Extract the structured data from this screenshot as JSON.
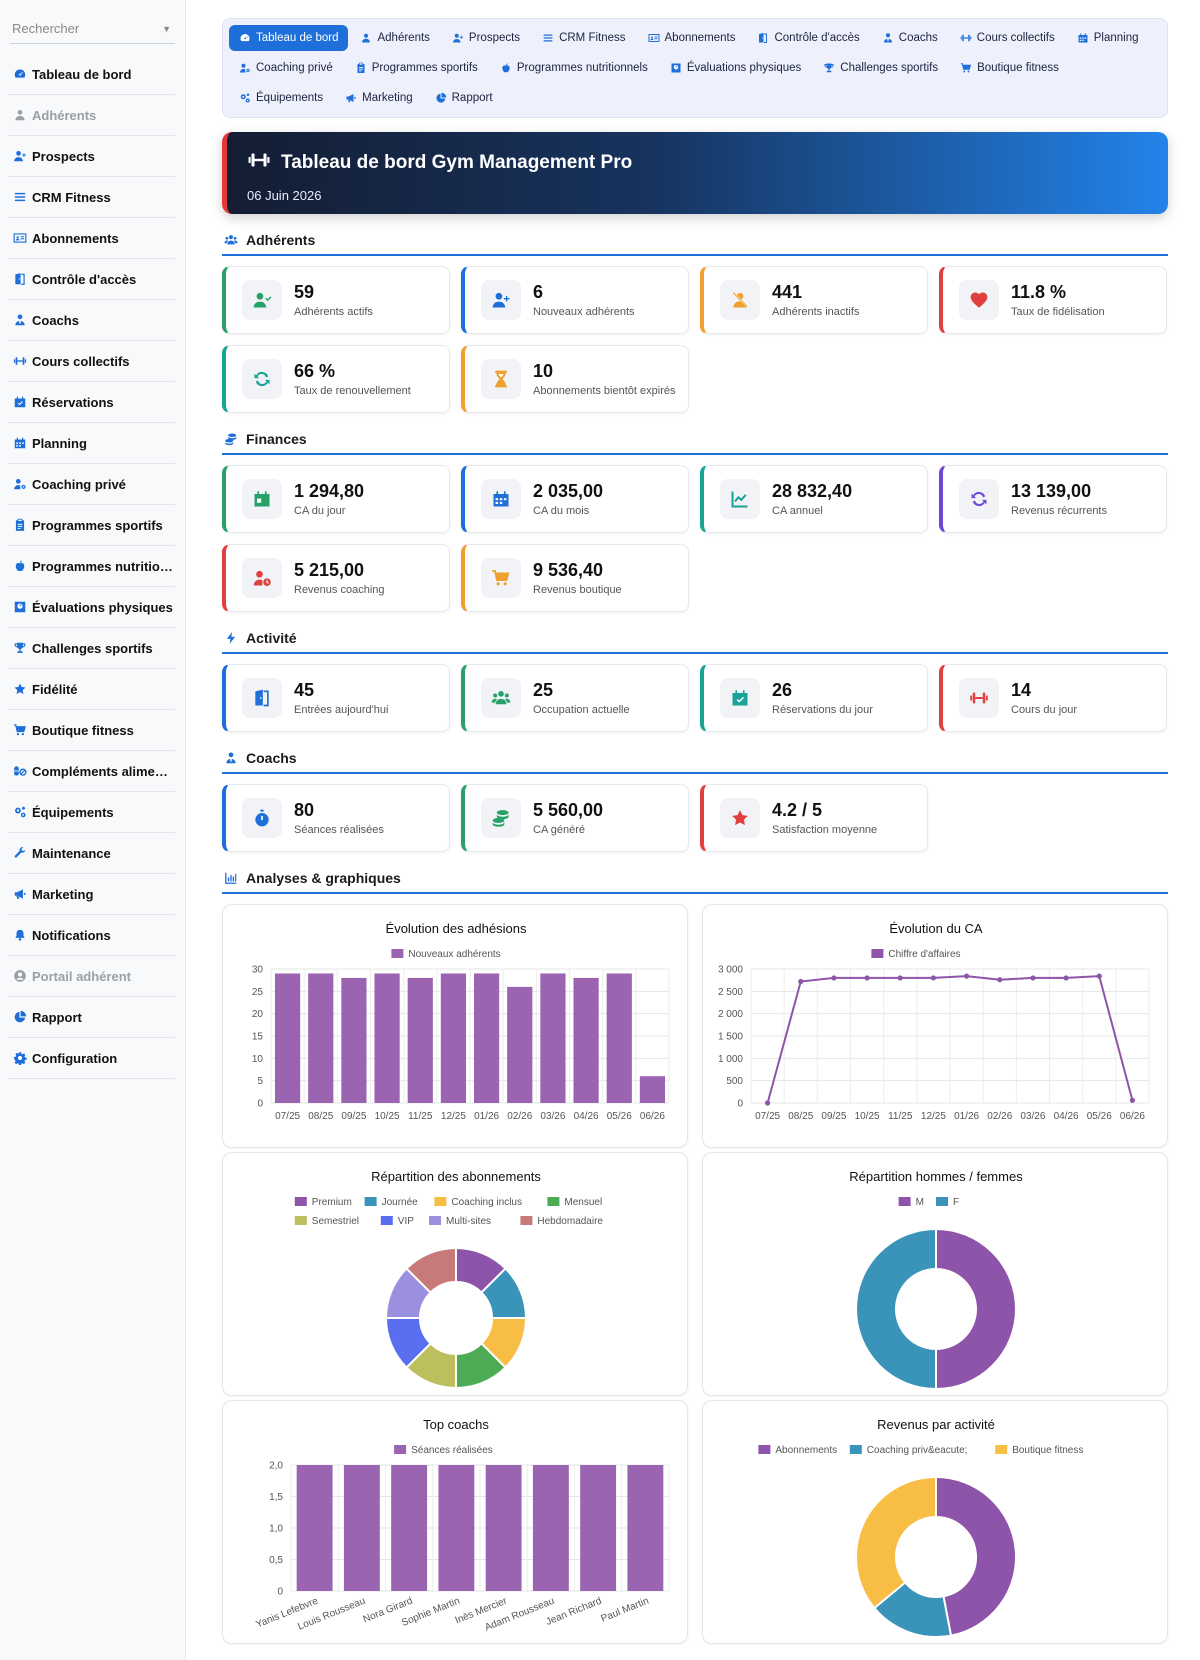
{
  "sidebar": {
    "search_placeholder": "Rechercher",
    "items": [
      {
        "label": "Tableau de bord",
        "icon": "gauge-icon",
        "disabled": false
      },
      {
        "label": "Adhérents",
        "icon": "user-icon",
        "disabled": true
      },
      {
        "label": "Prospects",
        "icon": "user-plus-icon",
        "disabled": false
      },
      {
        "label": "CRM Fitness",
        "icon": "list-icon",
        "disabled": false
      },
      {
        "label": "Abonnements",
        "icon": "id-card-icon",
        "disabled": false
      },
      {
        "label": "Contrôle d'accès",
        "icon": "door-icon",
        "disabled": false
      },
      {
        "label": "Coachs",
        "icon": "user-tie-icon",
        "disabled": false
      },
      {
        "label": "Cours collectifs",
        "icon": "dumbbell-icon",
        "disabled": false
      },
      {
        "label": "Réservations",
        "icon": "calendar-check-icon",
        "disabled": false
      },
      {
        "label": "Planning",
        "icon": "calendar-icon",
        "disabled": false
      },
      {
        "label": "Coaching privé",
        "icon": "user-cog-icon",
        "disabled": false
      },
      {
        "label": "Programmes sportifs",
        "icon": "clipboard-icon",
        "disabled": false
      },
      {
        "label": "Programmes nutritio…",
        "icon": "apple-icon",
        "disabled": false
      },
      {
        "label": "Évaluations physiques",
        "icon": "scale-icon",
        "disabled": false
      },
      {
        "label": "Challenges sportifs",
        "icon": "trophy-icon",
        "disabled": false
      },
      {
        "label": "Fidélité",
        "icon": "star-icon",
        "disabled": false
      },
      {
        "label": "Boutique fitness",
        "icon": "cart-icon",
        "disabled": false
      },
      {
        "label": "Compléments alime…",
        "icon": "pills-icon",
        "disabled": false
      },
      {
        "label": "Équipements",
        "icon": "cogs-icon",
        "disabled": false
      },
      {
        "label": "Maintenance",
        "icon": "wrench-icon",
        "disabled": false
      },
      {
        "label": "Marketing",
        "icon": "megaphone-icon",
        "disabled": false
      },
      {
        "label": "Notifications",
        "icon": "bell-icon",
        "disabled": false
      },
      {
        "label": "Portail adhérent",
        "icon": "user-circle-icon",
        "disabled": true
      },
      {
        "label": "Rapport",
        "icon": "pie-icon",
        "disabled": false
      },
      {
        "label": "Configuration",
        "icon": "gear-icon",
        "disabled": false
      }
    ]
  },
  "topnav": [
    {
      "label": "Tableau de bord",
      "icon": "gauge-icon",
      "active": true
    },
    {
      "label": "Adhérents",
      "icon": "user-icon",
      "active": false
    },
    {
      "label": "Prospects",
      "icon": "user-plus-icon",
      "active": false
    },
    {
      "label": "CRM Fitness",
      "icon": "list-icon",
      "active": false
    },
    {
      "label": "Abonnements",
      "icon": "id-card-icon",
      "active": false
    },
    {
      "label": "Contrôle d'accès",
      "icon": "door-icon",
      "active": false
    },
    {
      "label": "Coachs",
      "icon": "user-tie-icon",
      "active": false
    },
    {
      "label": "Cours collectifs",
      "icon": "dumbbell-icon",
      "active": false
    },
    {
      "label": "Planning",
      "icon": "calendar-icon",
      "active": false
    },
    {
      "label": "Coaching privé",
      "icon": "user-cog-icon",
      "active": false
    },
    {
      "label": "Programmes sportifs",
      "icon": "clipboard-icon",
      "active": false
    },
    {
      "label": "Programmes nutritionnels",
      "icon": "apple-icon",
      "active": false
    },
    {
      "label": "Évaluations physiques",
      "icon": "scale-icon",
      "active": false
    },
    {
      "label": "Challenges sportifs",
      "icon": "trophy-icon",
      "active": false
    },
    {
      "label": "Boutique fitness",
      "icon": "cart-icon",
      "active": false
    },
    {
      "label": "Équipements",
      "icon": "cogs-icon",
      "active": false
    },
    {
      "label": "Marketing",
      "icon": "megaphone-icon",
      "active": false
    },
    {
      "label": "Rapport",
      "icon": "pie-icon",
      "active": false
    }
  ],
  "header": {
    "title": "Tableau de bord Gym Management Pro",
    "date": "06 Juin 2026",
    "icon": "dumbbell-icon"
  },
  "sections": [
    {
      "title": "Adhérents",
      "icon": "users-icon",
      "cards": [
        {
          "value": "59",
          "label": "Adhérents actifs",
          "icon": "user-check-icon",
          "color": "#26a269"
        },
        {
          "value": "6",
          "label": "Nouveaux adhérents",
          "icon": "user-plus-icon",
          "color": "#1e6fd9"
        },
        {
          "value": "441",
          "label": "Adhérents inactifs",
          "icon": "user-slash-icon",
          "color": "#f0a030"
        },
        {
          "value": "11.8 %",
          "label": "Taux de fidélisation",
          "icon": "heart-icon",
          "color": "#e04040"
        },
        {
          "value": "66 %",
          "label": "Taux de renouvellement",
          "icon": "refresh-icon",
          "color": "#17a398"
        },
        {
          "value": "10",
          "label": "Abonnements bientôt expirés",
          "icon": "hourglass-icon",
          "color": "#f0a030"
        }
      ]
    },
    {
      "title": "Finances",
      "icon": "coins-icon",
      "cards": [
        {
          "value": "1 294,80",
          "label": "CA du jour",
          "icon": "calendar-day-icon",
          "color": "#26a269"
        },
        {
          "value": "2 035,00",
          "label": "CA du mois",
          "icon": "calendar-icon",
          "color": "#1e6fd9"
        },
        {
          "value": "28 832,40",
          "label": "CA annuel",
          "icon": "chart-line-icon",
          "color": "#17a398"
        },
        {
          "value": "13 139,00",
          "label": "Revenus récurrents",
          "icon": "sync-icon",
          "color": "#7048d8"
        },
        {
          "value": "5 215,00",
          "label": "Revenus coaching",
          "icon": "user-clock-icon",
          "color": "#e04040"
        },
        {
          "value": "9 536,40",
          "label": "Revenus boutique",
          "icon": "cart-icon",
          "color": "#f0a030"
        }
      ]
    },
    {
      "title": "Activité",
      "icon": "bolt-icon",
      "cards": [
        {
          "value": "45",
          "label": "Entrées aujourd'hui",
          "icon": "door-icon",
          "color": "#1e6fd9"
        },
        {
          "value": "25",
          "label": "Occupation actuelle",
          "icon": "users-icon",
          "color": "#26a269"
        },
        {
          "value": "26",
          "label": "Réservations du jour",
          "icon": "calendar-check-icon",
          "color": "#17a398"
        },
        {
          "value": "14",
          "label": "Cours du jour",
          "icon": "dumbbell-icon",
          "color": "#e04040"
        }
      ]
    },
    {
      "title": "Coachs",
      "icon": "user-tie-icon",
      "cards": [
        {
          "value": "80",
          "label": "Séances réalisées",
          "icon": "stopwatch-icon",
          "color": "#1e6fd9"
        },
        {
          "value": "5 560,00",
          "label": "CA généré",
          "icon": "coins-icon",
          "color": "#26a269"
        },
        {
          "value": "4.2 / 5",
          "label": "Satisfaction moyenne",
          "icon": "star-icon",
          "color": "#e04040"
        }
      ]
    }
  ],
  "analytics": {
    "title": "Analyses & graphiques",
    "icon": "chart-bar-icon"
  },
  "chart_data": [
    {
      "type": "bar",
      "title": "Évolution des adhésions",
      "categories": [
        "07/25",
        "08/25",
        "09/25",
        "10/25",
        "11/25",
        "12/25",
        "01/26",
        "02/26",
        "03/26",
        "04/26",
        "05/26",
        "06/26"
      ],
      "series": [
        {
          "name": "Nouveaux adhérents",
          "values": [
            29,
            29,
            28,
            29,
            28,
            29,
            29,
            26,
            29,
            28,
            29,
            6
          ],
          "color": "#9b64b0"
        }
      ],
      "ylim": [
        0,
        30
      ],
      "yticks": [
        "0",
        "5",
        "10",
        "15",
        "20",
        "25",
        "30"
      ],
      "grid": true,
      "legend": "top"
    },
    {
      "type": "line",
      "title": "Évolution du CA",
      "categories": [
        "07/25",
        "08/25",
        "09/25",
        "10/25",
        "11/25",
        "12/25",
        "01/26",
        "02/26",
        "03/26",
        "04/26",
        "05/26",
        "06/26"
      ],
      "series": [
        {
          "name": "Chiffre d'affaires",
          "values": [
            0,
            2720,
            2800,
            2800,
            2800,
            2800,
            2840,
            2760,
            2800,
            2800,
            2840,
            60
          ],
          "color": "#8e54a9"
        }
      ],
      "ylim": [
        0,
        3000
      ],
      "yticks": [
        "0",
        "500",
        "1 000",
        "1 500",
        "2 000",
        "2 500",
        "3 000"
      ],
      "grid": true,
      "legend": "top"
    },
    {
      "type": "pie",
      "title": "Répartition des abonnements",
      "labels": [
        "Premium",
        "Journée",
        "Coaching inclus",
        "Mensuel",
        "Semestriel",
        "VIP",
        "Multi-sites",
        "Hebdomadaire"
      ],
      "values": [
        1,
        1,
        1,
        1,
        1,
        1,
        1,
        1
      ],
      "colors": [
        "#8e54a9",
        "#3a93b8",
        "#f8bd45",
        "#4dab55",
        "#bdbf5e",
        "#5a6ff0",
        "#9b8fe0",
        "#c87a7a"
      ],
      "legend": "top"
    },
    {
      "type": "pie",
      "title": "Répartition hommes / femmes",
      "labels": [
        "M",
        "F"
      ],
      "values": [
        50,
        50
      ],
      "colors": [
        "#8e54a9",
        "#3a93b8"
      ],
      "legend": "top"
    },
    {
      "type": "bar",
      "title": "Top coachs",
      "categories": [
        "Yanis Lefebvre",
        "Louis Rousseau",
        "Nora Girard",
        "Sophie Martin",
        "Inès Mercier",
        "Adam Rousseau",
        "Jean Richard",
        "Paul Martin"
      ],
      "series": [
        {
          "name": "Séances réalisées",
          "values": [
            2,
            2,
            2,
            2,
            2,
            2,
            2,
            2
          ],
          "color": "#9b64b0"
        }
      ],
      "ylim": [
        0,
        2
      ],
      "yticks": [
        "0",
        "0,5",
        "1,0",
        "1,5",
        "2,0"
      ],
      "grid": true,
      "legend": "top"
    },
    {
      "type": "pie",
      "title": "Revenus par activité",
      "labels": [
        "Abonnements",
        "Coaching priv&eacute;",
        "Boutique fitness"
      ],
      "values": [
        47,
        17,
        36
      ],
      "colors": [
        "#8e54a9",
        "#3a93b8",
        "#f8bd45"
      ],
      "legend": "top"
    }
  ]
}
